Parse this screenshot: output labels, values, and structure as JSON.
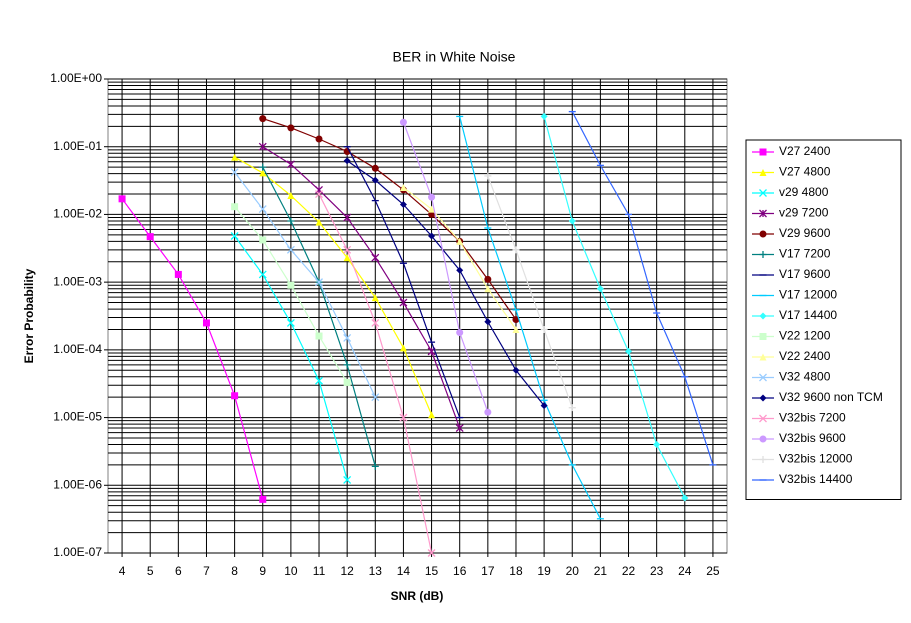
{
  "chart_data": {
    "type": "line",
    "title": "BER in White Noise",
    "x_label": "SNR (dB)",
    "y_label": "Error Probability",
    "xlim": [
      3.5,
      25.5
    ],
    "xticks": [
      4,
      5,
      6,
      7,
      8,
      9,
      10,
      11,
      12,
      13,
      14,
      15,
      16,
      17,
      18,
      19,
      20,
      21,
      22,
      23,
      24,
      25
    ],
    "ylim": [
      1e-07,
      1
    ],
    "log_y": true,
    "grid": true,
    "minor_grid": true,
    "legend": "right",
    "yticks": [
      {
        "value": 1,
        "label": "1.00E+00"
      },
      {
        "value": 0.1,
        "label": "1.00E-01"
      },
      {
        "value": 0.01,
        "label": "1.00E-02"
      },
      {
        "value": 0.001,
        "label": "1.00E-03"
      },
      {
        "value": 0.0001,
        "label": "1.00E-04"
      },
      {
        "value": 1e-05,
        "label": "1.00E-05"
      },
      {
        "value": 1e-06,
        "label": "1.00E-06"
      },
      {
        "value": 1e-07,
        "label": "1.00E-07"
      }
    ],
    "series": [
      {
        "name": "V27 2400",
        "color": "#ff00ff",
        "marker": "square",
        "x": [
          4,
          5,
          6,
          7,
          8,
          9
        ],
        "values": [
          0.017,
          0.0047,
          0.0013,
          0.00025,
          2.1e-05,
          6.2e-07
        ]
      },
      {
        "name": "V27 4800",
        "color": "#ffff00",
        "marker": "triangle",
        "x": [
          8,
          9,
          10,
          11,
          12,
          13,
          14,
          15
        ],
        "values": [
          0.07,
          0.041,
          0.019,
          0.0077,
          0.0023,
          0.00059,
          0.000107,
          1.1e-05
        ]
      },
      {
        "name": "v29 4800",
        "color": "#00ffff",
        "marker": "x",
        "x": [
          8,
          9,
          10,
          11,
          12
        ],
        "values": [
          0.0048,
          0.0013,
          0.00025,
          3.5e-05,
          1.2e-06
        ]
      },
      {
        "name": "v29 7200",
        "color": "#800080",
        "marker": "star",
        "x": [
          9,
          10,
          11,
          12,
          13,
          14,
          15,
          16
        ],
        "values": [
          0.1,
          0.055,
          0.023,
          0.009,
          0.0023,
          0.0005,
          9.5e-05,
          7e-06
        ]
      },
      {
        "name": "V29 9600",
        "color": "#800000",
        "marker": "circle",
        "x": [
          9,
          10,
          11,
          12,
          13,
          14,
          15,
          16,
          17,
          18
        ],
        "values": [
          0.26,
          0.19,
          0.13,
          0.085,
          0.048,
          0.023,
          0.01,
          0.004,
          0.0011,
          0.00028
        ]
      },
      {
        "name": "V17 7200",
        "color": "#008080",
        "marker": "plus",
        "x": [
          9,
          10,
          11,
          12,
          13
        ],
        "values": [
          0.05,
          0.008,
          0.001,
          6e-05,
          1.9e-06
        ]
      },
      {
        "name": "V17 9600",
        "color": "#000080",
        "marker": "dash",
        "x": [
          12,
          13,
          14,
          15,
          16
        ],
        "values": [
          0.1,
          0.016,
          0.0019,
          0.00013,
          1e-05
        ]
      },
      {
        "name": "V17 12000",
        "color": "#00ccff",
        "marker": "dash",
        "x": [
          16,
          17,
          18,
          19,
          20,
          21
        ],
        "values": [
          0.28,
          0.0063,
          0.00039,
          1.8e-05,
          2e-06,
          3.2e-07
        ]
      },
      {
        "name": "V17 14400",
        "color": "#33ffff",
        "marker": "diamond",
        "x": [
          19,
          20,
          21,
          22,
          23,
          24
        ],
        "values": [
          0.28,
          0.008,
          0.0008,
          9.5e-05,
          4e-06,
          6.5e-07
        ]
      },
      {
        "name": "V22 1200",
        "color": "#ccffcc",
        "marker": "square",
        "x": [
          8,
          9,
          10,
          11,
          12
        ],
        "values": [
          0.013,
          0.0042,
          0.0009,
          0.00016,
          3.3e-05
        ]
      },
      {
        "name": "V22 2400",
        "color": "#ffff99",
        "marker": "triangle",
        "x": [
          14,
          15,
          16,
          17,
          18
        ],
        "values": [
          0.025,
          0.012,
          0.004,
          0.0008,
          0.0002
        ]
      },
      {
        "name": "V32 4800",
        "color": "#99ccff",
        "marker": "x",
        "x": [
          8,
          9,
          10,
          11,
          12,
          13
        ],
        "values": [
          0.042,
          0.012,
          0.003,
          0.001,
          0.00015,
          2e-05
        ]
      },
      {
        "name": "V32 9600 non TCM",
        "color": "#000080",
        "marker": "diamond",
        "x": [
          12,
          13,
          14,
          15,
          16,
          17,
          18,
          19
        ],
        "values": [
          0.062,
          0.032,
          0.014,
          0.0048,
          0.0015,
          0.00026,
          5e-05,
          1.5e-05
        ]
      },
      {
        "name": "V32bis 7200",
        "color": "#ff99cc",
        "marker": "x",
        "x": [
          11,
          12,
          13,
          14,
          15
        ],
        "values": [
          0.02,
          0.003,
          0.00025,
          1e-05,
          1e-07
        ]
      },
      {
        "name": "V32bis 9600",
        "color": "#cc99ff",
        "marker": "circle",
        "x": [
          14,
          15,
          16,
          17
        ],
        "values": [
          0.23,
          0.018,
          0.00018,
          1.2e-05
        ]
      },
      {
        "name": "V32bis 12000",
        "color": "#e0e0e0",
        "marker": "plus",
        "x": [
          17,
          18,
          19,
          20
        ],
        "values": [
          0.037,
          0.003,
          0.0002,
          1.4e-05
        ]
      },
      {
        "name": "V32bis 14400",
        "color": "#3366ff",
        "marker": "dash",
        "x": [
          20,
          21,
          22,
          23,
          24,
          25
        ],
        "values": [
          0.33,
          0.053,
          0.01,
          0.00035,
          4e-05,
          2e-06
        ]
      }
    ]
  }
}
